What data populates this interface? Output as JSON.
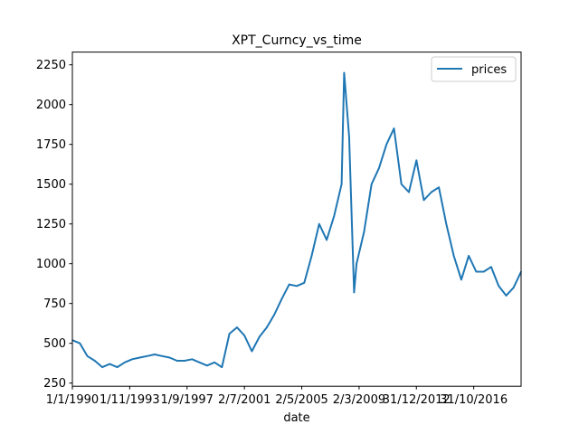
{
  "chart_data": {
    "type": "line",
    "title": "XPT_Curncy_vs_time",
    "xlabel": "date",
    "ylabel": "",
    "x_tick_labels": [
      "1/1/1990",
      "1/11/1993",
      "1/9/1997",
      "2/7/2001",
      "2/5/2005",
      "2/3/2009",
      "31/12/2012",
      "31/10/2016"
    ],
    "y_ticks": [
      250,
      500,
      750,
      1000,
      1250,
      1500,
      1750,
      2000,
      2250
    ],
    "ylim": [
      230,
      2330
    ],
    "legend": {
      "position": "top-right",
      "entries": [
        "prices"
      ]
    },
    "grid": false,
    "color": "#1f77b4",
    "series": [
      {
        "name": "prices",
        "x": [
          "1990-01",
          "1990-07",
          "1991-01",
          "1991-07",
          "1992-01",
          "1992-07",
          "1993-01",
          "1993-07",
          "1994-01",
          "1994-07",
          "1995-01",
          "1995-07",
          "1996-01",
          "1996-07",
          "1997-01",
          "1997-07",
          "1998-01",
          "1998-07",
          "1999-01",
          "1999-07",
          "2000-01",
          "2000-07",
          "2001-01",
          "2001-07",
          "2002-01",
          "2002-07",
          "2003-01",
          "2003-07",
          "2004-01",
          "2004-07",
          "2005-01",
          "2005-07",
          "2006-01",
          "2006-07",
          "2007-01",
          "2007-07",
          "2008-01",
          "2008-03",
          "2008-07",
          "2008-11",
          "2009-01",
          "2009-07",
          "2010-01",
          "2010-07",
          "2011-01",
          "2011-07",
          "2012-01",
          "2012-07",
          "2013-01",
          "2013-07",
          "2014-01",
          "2014-07",
          "2015-01",
          "2015-07",
          "2016-01",
          "2016-07",
          "2017-01",
          "2017-07",
          "2018-01",
          "2018-07",
          "2019-01",
          "2019-07",
          "2020-01"
        ],
        "values": [
          520,
          500,
          420,
          390,
          350,
          370,
          350,
          380,
          400,
          410,
          420,
          430,
          420,
          410,
          390,
          390,
          400,
          380,
          360,
          380,
          350,
          560,
          600,
          550,
          450,
          540,
          600,
          680,
          780,
          870,
          860,
          880,
          1050,
          1250,
          1150,
          1300,
          1500,
          2200,
          1800,
          820,
          1000,
          1200,
          1500,
          1600,
          1750,
          1850,
          1500,
          1450,
          1650,
          1400,
          1450,
          1480,
          1250,
          1050,
          900,
          1050,
          950,
          950,
          980,
          860,
          800,
          850,
          950
        ]
      }
    ]
  }
}
